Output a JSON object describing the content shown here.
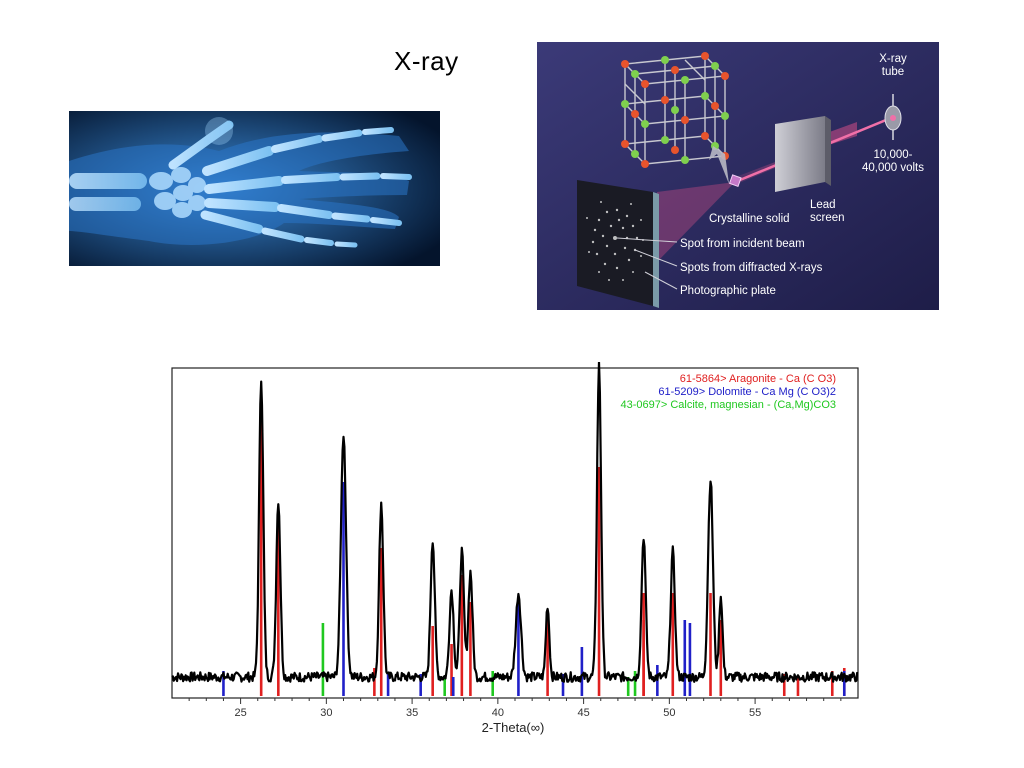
{
  "slide": {
    "title": "X-ray"
  },
  "hand_xray": {
    "icon": "hand-xray-image"
  },
  "diagram": {
    "labels": {
      "tube": [
        "X-ray",
        "tube"
      ],
      "voltage": [
        "10,000-",
        "40,000 volts"
      ],
      "lead": [
        "Lead",
        "screen"
      ],
      "crystal": "Crystalline solid",
      "incident": "Spot from incident beam",
      "diffracted": "Spots from diffracted X-rays",
      "plate": "Photographic plate"
    },
    "colors": {
      "background": "#2c2a5e",
      "beam": "#e0508a",
      "atom_red": "#e8542c",
      "atom_green": "#7fd04e"
    }
  },
  "chart_data": {
    "type": "line",
    "xlabel": "2-Theta(∞)",
    "xlim": [
      21,
      61
    ],
    "ylim": [
      0,
      100
    ],
    "x_ticks": [
      25,
      30,
      35,
      40,
      45,
      50,
      55
    ],
    "legend_position": "top-right",
    "legend": [
      {
        "text": "61-5864> Aragonite - Ca (C O3)",
        "color": "#e02020"
      },
      {
        "text": "61-5209> Dolomite - Ca Mg (C O3)2",
        "color": "#2020c8"
      },
      {
        "text": "43-0697> Calcite, magnesian - (Ca,Mg)CO3",
        "color": "#20c820"
      }
    ],
    "peaks": [
      {
        "x": 26.2,
        "y": 100,
        "w": 0.12
      },
      {
        "x": 27.2,
        "y": 59,
        "w": 0.12
      },
      {
        "x": 31.0,
        "y": 81,
        "w": 0.15
      },
      {
        "x": 33.2,
        "y": 58,
        "w": 0.12
      },
      {
        "x": 36.2,
        "y": 46,
        "w": 0.12
      },
      {
        "x": 37.3,
        "y": 29,
        "w": 0.12
      },
      {
        "x": 37.9,
        "y": 42,
        "w": 0.12
      },
      {
        "x": 38.4,
        "y": 35,
        "w": 0.12
      },
      {
        "x": 41.2,
        "y": 28,
        "w": 0.15
      },
      {
        "x": 42.9,
        "y": 24,
        "w": 0.1
      },
      {
        "x": 45.9,
        "y": 104,
        "w": 0.12
      },
      {
        "x": 48.5,
        "y": 47,
        "w": 0.12
      },
      {
        "x": 50.2,
        "y": 42,
        "w": 0.12
      },
      {
        "x": 52.4,
        "y": 66,
        "w": 0.14
      },
      {
        "x": 53.0,
        "y": 27,
        "w": 0.1
      }
    ],
    "series": [
      {
        "name": "Aragonite",
        "color": "#e02020",
        "sticks": [
          [
            26.2,
            97
          ],
          [
            27.2,
            55
          ],
          [
            32.8,
            6
          ],
          [
            33.2,
            46
          ],
          [
            36.2,
            20
          ],
          [
            37.3,
            14
          ],
          [
            37.9,
            37
          ],
          [
            38.4,
            28
          ],
          [
            42.9,
            24
          ],
          [
            45.9,
            73
          ],
          [
            48.5,
            31
          ],
          [
            48.5,
            22
          ],
          [
            50.2,
            31
          ],
          [
            52.4,
            31
          ],
          [
            53.0,
            22
          ],
          [
            56.7,
            4
          ],
          [
            57.5,
            3
          ],
          [
            59.5,
            5
          ],
          [
            60.2,
            6
          ]
        ]
      },
      {
        "name": "Dolomite",
        "color": "#2020c8",
        "sticks": [
          [
            24.0,
            5
          ],
          [
            31.0,
            68
          ],
          [
            33.6,
            4
          ],
          [
            35.5,
            4
          ],
          [
            37.4,
            3
          ],
          [
            41.2,
            28
          ],
          [
            43.8,
            4
          ],
          [
            44.9,
            13
          ],
          [
            49.3,
            7
          ],
          [
            50.9,
            22
          ],
          [
            51.2,
            21
          ],
          [
            60.2,
            5
          ]
        ]
      },
      {
        "name": "Calcite, magnesian",
        "color": "#20c820",
        "sticks": [
          [
            29.8,
            21
          ],
          [
            36.9,
            3
          ],
          [
            39.7,
            5
          ],
          [
            47.6,
            3
          ],
          [
            48.0,
            5
          ]
        ]
      }
    ]
  }
}
